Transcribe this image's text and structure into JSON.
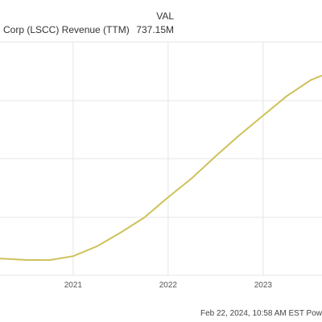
{
  "legend": {
    "series_label": "Corp (LSCC) Revenue (TTM)",
    "value_header": "VAL",
    "value": "737.15M"
  },
  "footer": {
    "timestamp": "Feb 22, 2024, 10:58 AM EST Pow"
  },
  "colors": {
    "line": "#cfc15a",
    "grid": "#e6e6e6",
    "background": "#ffffff"
  },
  "chart_data": {
    "type": "line",
    "x_tick_labels": [
      "2021",
      "2022",
      "2023"
    ],
    "x_ticks": [
      2021.0,
      2022.0,
      2023.0
    ],
    "xlim": [
      2020.23,
      2023.62
    ],
    "ylim": [
      0,
      1
    ],
    "grid": true,
    "series": [
      {
        "name": "Corp (LSCC) Revenue (TTM)",
        "x": [
          2020.23,
          2020.5,
          2020.75,
          2021.0,
          2021.25,
          2021.5,
          2021.75,
          2022.0,
          2022.25,
          2022.5,
          2022.75,
          2023.0,
          2023.25,
          2023.5,
          2023.62
        ],
        "y": [
          0.072,
          0.066,
          0.065,
          0.082,
          0.124,
          0.183,
          0.248,
          0.334,
          0.416,
          0.51,
          0.6,
          0.684,
          0.768,
          0.836,
          0.856
        ]
      }
    ]
  }
}
